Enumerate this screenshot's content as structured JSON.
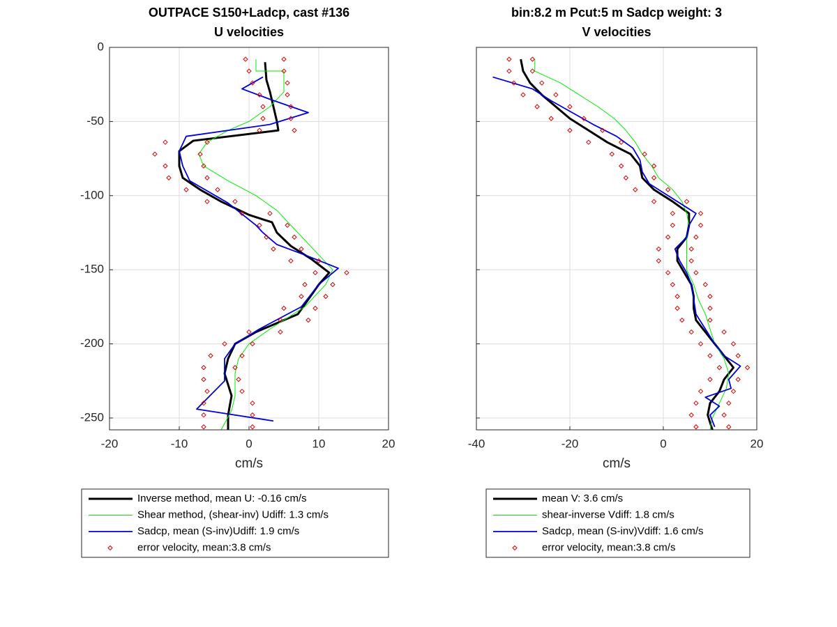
{
  "chart_data": [
    {
      "type": "line",
      "title": "OUTPACE S150+Ladcp, cast #136",
      "subtitle": "U velocities",
      "x_label": "cm/s",
      "xlim": [
        -20,
        20
      ],
      "xticks": [
        -20,
        -10,
        0,
        10,
        20
      ],
      "ylim": [
        -258,
        0
      ],
      "yticks": [
        0,
        -50,
        -100,
        -150,
        -200,
        -250
      ],
      "grid": true,
      "show_ytick_labels": true,
      "legend": "below",
      "series": [
        {
          "name": "Inverse method, mean U:  -0.16 cm/s",
          "color": "#000000",
          "width": 3,
          "x": [
            2.3,
            2.5,
            3,
            3.5,
            4,
            4.2,
            -8,
            -10,
            -10,
            -9.5,
            -7,
            -4,
            0,
            3.3,
            4,
            6,
            9,
            11.5,
            10,
            8.5,
            7,
            1,
            -2,
            -3,
            -3.5,
            -2.5,
            -3,
            -3
          ],
          "y": [
            -10,
            -22,
            -30,
            -40,
            -50,
            -56,
            -63,
            -70,
            -80,
            -88,
            -96,
            -104,
            -113,
            -118,
            -125,
            -134,
            -143,
            -152,
            -160,
            -170,
            -180,
            -192,
            -200,
            -210,
            -220,
            -235,
            -248,
            -258
          ]
        },
        {
          "name": "Shear method, (shear-inv)  Udiff:  1.3 cm/s",
          "color": "#00ee00",
          "width": 1,
          "x": [
            1,
            1,
            5,
            5,
            3,
            0,
            -3,
            -6,
            -7.2,
            -6.5,
            -3,
            1,
            4,
            6,
            8,
            10,
            12,
            11,
            8,
            3,
            0,
            -1.5,
            -2,
            -2,
            -2.5,
            -4
          ],
          "y": [
            -8,
            -16,
            -16,
            -30,
            -40,
            -50,
            -56,
            -64,
            -72,
            -80,
            -90,
            -100,
            -110,
            -120,
            -130,
            -140,
            -150,
            -160,
            -175,
            -190,
            -200,
            -210,
            -220,
            -235,
            -245,
            -258
          ]
        },
        {
          "name": "Sadcp, mean (S-inv)Udiff: 1.9 cm/s",
          "color": "#0000dd",
          "width": 1.8,
          "x": [
            2,
            -1,
            3,
            8.5,
            3,
            -9,
            -10,
            -9.5,
            -8.5,
            -3,
            1,
            2,
            4,
            8,
            12.8,
            10,
            7.5,
            1.5,
            -2,
            -3.5,
            -3.5,
            -7.5,
            3.5
          ],
          "y": [
            -20,
            -28,
            -35,
            -44,
            -52,
            -60,
            -70,
            -80,
            -90,
            -105,
            -120,
            -125,
            -133,
            -140,
            -149,
            -160,
            -175,
            -190,
            -200,
            -210,
            -225,
            -244,
            -252
          ]
        },
        {
          "name": "error velocity, mean:3.8 cm/s",
          "color": "#dd0000",
          "marker": "diamond",
          "x": [
            -0.5,
            5,
            0,
            5,
            0.5,
            5.5,
            1.5,
            5.5,
            2,
            6,
            2,
            6,
            1.5,
            6.5,
            -12,
            -6,
            -13.5,
            -7,
            -12,
            -6.5,
            -11.5,
            -6,
            -9,
            -4.5,
            -6,
            -2,
            -1,
            3,
            1.5,
            5.5,
            2.5,
            6.5,
            3.5,
            7.5,
            6,
            10,
            9.5,
            14,
            8,
            12,
            7.5,
            11,
            5,
            9.5,
            4.5,
            8.5,
            0,
            4.5,
            -3.5,
            0.5,
            -5.5,
            -1,
            -6.5,
            -2,
            -6.5,
            -1.5,
            -6,
            -1,
            -6.5,
            0.5,
            -6.5,
            0.5,
            -6.5,
            0.5
          ],
          "y": [
            -8,
            -8,
            -16,
            -16,
            -24,
            -24,
            -32,
            -32,
            -40,
            -40,
            -48,
            -48,
            -56,
            -56,
            -64,
            -64,
            -72,
            -72,
            -80,
            -80,
            -88,
            -88,
            -96,
            -96,
            -104,
            -104,
            -112,
            -112,
            -120,
            -120,
            -128,
            -128,
            -136,
            -136,
            -144,
            -144,
            -152,
            -152,
            -160,
            -160,
            -168,
            -168,
            -176,
            -176,
            -184,
            -184,
            -192,
            -192,
            -200,
            -200,
            -208,
            -208,
            -216,
            -216,
            -224,
            -224,
            -232,
            -232,
            -240,
            -240,
            -248,
            -248,
            -256,
            -256
          ]
        }
      ]
    },
    {
      "type": "line",
      "title": "bin:8.2 m  Pcut:5 m  Sadcp weight: 3",
      "subtitle": "V velocities",
      "x_label": "cm/s",
      "xlim": [
        -40,
        20
      ],
      "xticks": [
        -40,
        -20,
        0,
        20
      ],
      "ylim": [
        -258,
        0
      ],
      "yticks": [
        0,
        -50,
        -100,
        -150,
        -200,
        -250
      ],
      "grid": true,
      "show_ytick_labels": false,
      "legend": "below",
      "series": [
        {
          "name": "mean V:  3.6 cm/s",
          "color": "#000000",
          "width": 3,
          "x": [
            -30.5,
            -30,
            -28.5,
            -26,
            -23,
            -20,
            -16,
            -12,
            -7,
            -5,
            -4.5,
            -2,
            2,
            5.5,
            5.5,
            5,
            3,
            3,
            4.5,
            6,
            6.5,
            6.5,
            7,
            9,
            11,
            13,
            15,
            13,
            12,
            10,
            9.5,
            10.5
          ],
          "y": [
            -8,
            -16,
            -24,
            -32,
            -40,
            -48,
            -56,
            -64,
            -72,
            -80,
            -88,
            -96,
            -104,
            -112,
            -120,
            -128,
            -136,
            -144,
            -152,
            -160,
            -168,
            -176,
            -184,
            -192,
            -200,
            -208,
            -216,
            -224,
            -232,
            -240,
            -248,
            -258
          ]
        },
        {
          "name": "shear-inverse Vdiff:  1.8 cm/s",
          "color": "#00ee00",
          "width": 1,
          "x": [
            -27.5,
            -27.5,
            -22,
            -18,
            -14,
            -10.5,
            -8,
            -6,
            -4.5,
            -2.5,
            -1,
            2,
            4,
            5,
            5.5,
            5,
            5,
            5,
            6.5,
            7.5,
            9,
            10,
            11,
            13,
            14,
            13.5,
            12,
            10.5,
            10
          ],
          "y": [
            -8,
            -16,
            -24,
            -32,
            -40,
            -48,
            -56,
            -64,
            -72,
            -80,
            -88,
            -96,
            -104,
            -112,
            -120,
            -130,
            -140,
            -150,
            -160,
            -170,
            -180,
            -190,
            -200,
            -210,
            -220,
            -230,
            -240,
            -250,
            -258
          ]
        },
        {
          "name": "Sadcp, mean (S-inv)Vdiff: 1.6 cm/s",
          "color": "#0000dd",
          "width": 1.8,
          "x": [
            -36.5,
            -28,
            -24,
            -19.5,
            -15,
            -10,
            -6.5,
            -5,
            -4.5,
            -3,
            1,
            5,
            7,
            5.5,
            5,
            2.5,
            3.5,
            5,
            6,
            6.5,
            7,
            9,
            11,
            13,
            16.5,
            14,
            14.5,
            9,
            12,
            10,
            11
          ],
          "y": [
            -20,
            -28,
            -36,
            -44,
            -52,
            -60,
            -68,
            -76,
            -84,
            -92,
            -100,
            -108,
            -112,
            -120,
            -128,
            -136,
            -144,
            -152,
            -160,
            -170,
            -180,
            -190,
            -200,
            -208,
            -215,
            -224,
            -230,
            -236,
            -242,
            -248,
            -256
          ]
        },
        {
          "name": "error velocity, mean:3.8 cm/s",
          "color": "#dd0000",
          "marker": "diamond",
          "x": [
            -33,
            -28,
            -33,
            -28,
            -32,
            -26,
            -30,
            -23,
            -27,
            -20,
            -24,
            -17,
            -20,
            -13,
            -16,
            -9,
            -11,
            -4,
            -9,
            -2,
            -8,
            -2,
            -6,
            1,
            -2,
            5,
            2,
            8,
            2,
            8,
            1,
            7,
            -1,
            6,
            -1,
            6,
            1,
            7,
            2,
            9,
            3,
            10,
            3,
            10,
            4,
            10,
            6,
            13,
            8,
            15,
            10,
            16,
            12,
            18,
            10,
            16,
            8,
            15,
            7,
            14,
            6,
            13,
            7,
            14
          ],
          "y": [
            -8,
            -8,
            -16,
            -16,
            -24,
            -24,
            -32,
            -32,
            -40,
            -40,
            -48,
            -48,
            -56,
            -56,
            -64,
            -64,
            -72,
            -72,
            -80,
            -80,
            -88,
            -88,
            -96,
            -96,
            -104,
            -104,
            -112,
            -112,
            -120,
            -120,
            -128,
            -128,
            -136,
            -136,
            -144,
            -144,
            -152,
            -152,
            -160,
            -160,
            -168,
            -168,
            -176,
            -176,
            -184,
            -184,
            -192,
            -192,
            -200,
            -200,
            -208,
            -208,
            -216,
            -216,
            -224,
            -224,
            -232,
            -232,
            -240,
            -240,
            -248,
            -248,
            -256,
            -256
          ]
        }
      ]
    }
  ]
}
